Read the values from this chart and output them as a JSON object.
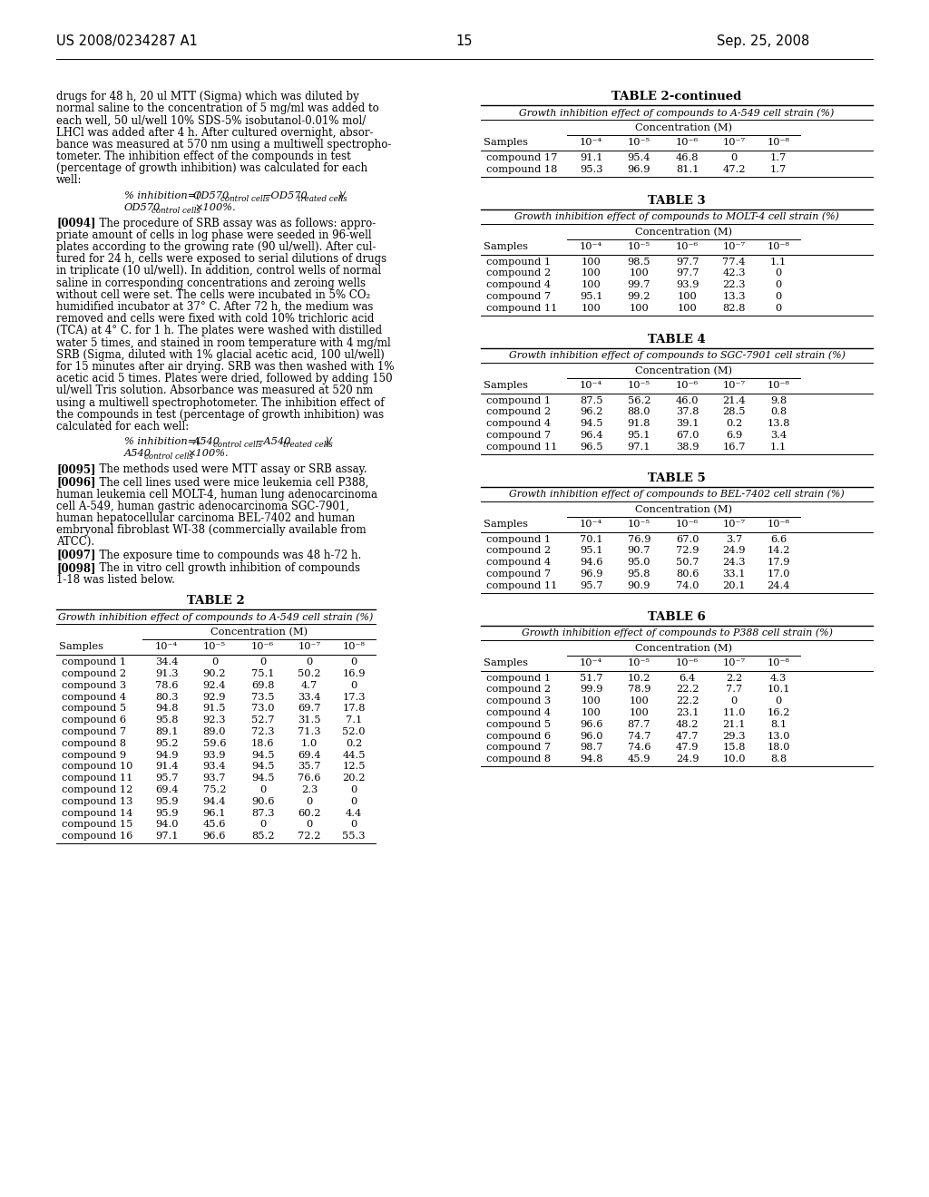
{
  "page_number": "15",
  "patent_left": "US 2008/0234287 A1",
  "patent_right": "Sep. 25, 2008",
  "left_text_top": [
    "drugs for 48 h, 20 ul MTT (Sigma) which was diluted by",
    "normal saline to the concentration of 5 mg/ml was added to",
    "each well, 50 ul/well 10% SDS-5% isobutanol-0.01% mol/",
    "LHCl was added after 4 h. After cultured overnight, absor-",
    "bance was measured at 570 nm using a multiwell spectropho-",
    "tometer. The inhibition effect of the compounds in test",
    "(percentage of growth inhibition) was calculated for each",
    "well:"
  ],
  "lines_0094": [
    "[0094]   The procedure of SRB assay was as follows: appro-",
    "priate amount of cells in log phase were seeded in 96-well",
    "plates according to the growing rate (90 ul/well). After cul-",
    "tured for 24 h, cells were exposed to serial dilutions of drugs",
    "in triplicate (10 ul/well). In addition, control wells of normal",
    "saline in corresponding concentrations and zeroing wells",
    "without cell were set. The cells were incubated in 5% CO₂",
    "humidified incubator at 37° C. After 72 h, the medium was",
    "removed and cells were fixed with cold 10% trichloric acid",
    "(TCA) at 4° C. for 1 h. The plates were washed with distilled",
    "water 5 times, and stained in room temperature with 4 mg/ml",
    "SRB (Sigma, diluted with 1% glacial acetic acid, 100 ul/well)",
    "for 15 minutes after air drying. SRB was then washed with 1%",
    "acetic acid 5 times. Plates were dried, followed by adding 150",
    "ul/well Tris solution. Absorbance was measured at 520 nm",
    "using a multiwell spectrophotometer. The inhibition effect of",
    "the compounds in test (percentage of growth inhibition) was",
    "calculated for each well:"
  ],
  "lines_0095": "[0095]   The methods used were MTT assay or SRB assay.",
  "lines_0096": [
    "[0096]   The cell lines used were mice leukemia cell P388,",
    "human leukemia cell MOLT-4, human lung adenocarcinoma",
    "cell A-549, human gastric adenocarcinoma SGC-7901,",
    "human hepatocellular carcinoma BEL-7402 and human",
    "embryonal fibroblast WI-38 (commercially available from",
    "ATCC)."
  ],
  "lines_0097": "[0097]   The exposure time to compounds was 48 h-72 h.",
  "lines_0098_1": "[0098]   The in vitro cell growth inhibition of compounds",
  "lines_0098_2": "1-18 was listed below.",
  "col_headers": [
    "Samples",
    "10⁻⁴",
    "10⁻⁵",
    "10⁻⁶",
    "10⁻⁷",
    "10⁻⁸"
  ],
  "table2_title": "TABLE 2",
  "table2_subtitle": "Growth inhibition effect of compounds to A-549 cell strain (%)",
  "table2_data": [
    [
      "compound 1",
      "34.4",
      "0",
      "0",
      "0",
      "0"
    ],
    [
      "compound 2",
      "91.3",
      "90.2",
      "75.1",
      "50.2",
      "16.9"
    ],
    [
      "compound 3",
      "78.6",
      "92.4",
      "69.8",
      "4.7",
      "0"
    ],
    [
      "compound 4",
      "80.3",
      "92.9",
      "73.5",
      "33.4",
      "17.3"
    ],
    [
      "compound 5",
      "94.8",
      "91.5",
      "73.0",
      "69.7",
      "17.8"
    ],
    [
      "compound 6",
      "95.8",
      "92.3",
      "52.7",
      "31.5",
      "7.1"
    ],
    [
      "compound 7",
      "89.1",
      "89.0",
      "72.3",
      "71.3",
      "52.0"
    ],
    [
      "compound 8",
      "95.2",
      "59.6",
      "18.6",
      "1.0",
      "0.2"
    ],
    [
      "compound 9",
      "94.9",
      "93.9",
      "94.5",
      "69.4",
      "44.5"
    ],
    [
      "compound 10",
      "91.4",
      "93.4",
      "94.5",
      "35.7",
      "12.5"
    ],
    [
      "compound 11",
      "95.7",
      "93.7",
      "94.5",
      "76.6",
      "20.2"
    ],
    [
      "compound 12",
      "69.4",
      "75.2",
      "0",
      "2.3",
      "0"
    ],
    [
      "compound 13",
      "95.9",
      "94.4",
      "90.6",
      "0",
      "0"
    ],
    [
      "compound 14",
      "95.9",
      "96.1",
      "87.3",
      "60.2",
      "4.4"
    ],
    [
      "compound 15",
      "94.0",
      "45.6",
      "0",
      "0",
      "0"
    ],
    [
      "compound 16",
      "97.1",
      "96.6",
      "85.2",
      "72.2",
      "55.3"
    ]
  ],
  "table2c_title": "TABLE 2-continued",
  "table2c_subtitle": "Growth inhibition effect of compounds to A-549 cell strain (%)",
  "table2c_data": [
    [
      "compound 17",
      "91.1",
      "95.4",
      "46.8",
      "0",
      "1.7"
    ],
    [
      "compound 18",
      "95.3",
      "96.9",
      "81.1",
      "47.2",
      "1.7"
    ]
  ],
  "table3_title": "TABLE 3",
  "table3_subtitle": "Growth inhibition effect of compounds to MOLT-4 cell strain (%)",
  "table3_data": [
    [
      "compound 1",
      "100",
      "98.5",
      "97.7",
      "77.4",
      "1.1"
    ],
    [
      "compound 2",
      "100",
      "100",
      "97.7",
      "42.3",
      "0"
    ],
    [
      "compound 4",
      "100",
      "99.7",
      "93.9",
      "22.3",
      "0"
    ],
    [
      "compound 7",
      "95.1",
      "99.2",
      "100",
      "13.3",
      "0"
    ],
    [
      "compound 11",
      "100",
      "100",
      "100",
      "82.8",
      "0"
    ]
  ],
  "table4_title": "TABLE 4",
  "table4_subtitle": "Growth inhibition effect of compounds to SGC-7901 cell strain (%)",
  "table4_data": [
    [
      "compound 1",
      "87.5",
      "56.2",
      "46.0",
      "21.4",
      "9.8"
    ],
    [
      "compound 2",
      "96.2",
      "88.0",
      "37.8",
      "28.5",
      "0.8"
    ],
    [
      "compound 4",
      "94.5",
      "91.8",
      "39.1",
      "0.2",
      "13.8"
    ],
    [
      "compound 7",
      "96.4",
      "95.1",
      "67.0",
      "6.9",
      "3.4"
    ],
    [
      "compound 11",
      "96.5",
      "97.1",
      "38.9",
      "16.7",
      "1.1"
    ]
  ],
  "table5_title": "TABLE 5",
  "table5_subtitle": "Growth inhibition effect of compounds to BEL-7402 cell strain (%)",
  "table5_data": [
    [
      "compound 1",
      "70.1",
      "76.9",
      "67.0",
      "3.7",
      "6.6"
    ],
    [
      "compound 2",
      "95.1",
      "90.7",
      "72.9",
      "24.9",
      "14.2"
    ],
    [
      "compound 4",
      "94.6",
      "95.0",
      "50.7",
      "24.3",
      "17.9"
    ],
    [
      "compound 7",
      "96.9",
      "95.8",
      "80.6",
      "33.1",
      "17.0"
    ],
    [
      "compound 11",
      "95.7",
      "90.9",
      "74.0",
      "20.1",
      "24.4"
    ]
  ],
  "table6_title": "TABLE 6",
  "table6_subtitle": "Growth inhibition effect of compounds to P388 cell strain (%)",
  "table6_data": [
    [
      "compound 1",
      "51.7",
      "10.2",
      "6.4",
      "2.2",
      "4.3"
    ],
    [
      "compound 2",
      "99.9",
      "78.9",
      "22.2",
      "7.7",
      "10.1"
    ],
    [
      "compound 3",
      "100",
      "100",
      "22.2",
      "0",
      "0"
    ],
    [
      "compound 4",
      "100",
      "100",
      "23.1",
      "11.0",
      "16.2"
    ],
    [
      "compound 5",
      "96.6",
      "87.7",
      "48.2",
      "21.1",
      "8.1"
    ],
    [
      "compound 6",
      "96.0",
      "74.7",
      "47.7",
      "29.3",
      "13.0"
    ],
    [
      "compound 7",
      "98.7",
      "74.6",
      "47.9",
      "15.8",
      "18.0"
    ],
    [
      "compound 8",
      "94.8",
      "45.9",
      "24.9",
      "10.0",
      "8.8"
    ]
  ]
}
